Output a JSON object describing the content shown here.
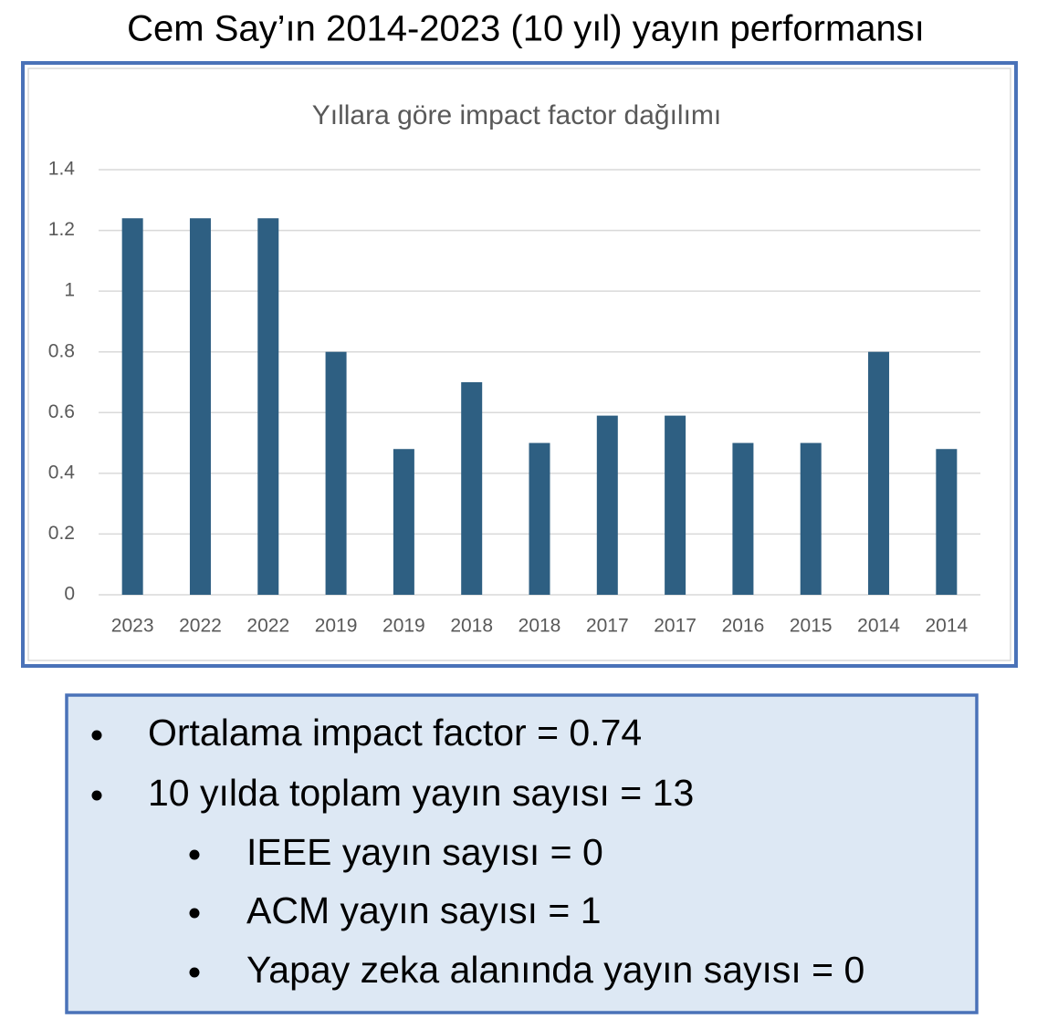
{
  "header": {
    "title": "Cem Say’ın 2014-2023 (10 yıl) yayın performansı"
  },
  "chart_data": {
    "type": "bar",
    "title": "Yıllara göre impact factor dağılımı",
    "categories": [
      "2023",
      "2022",
      "2022",
      "2019",
      "2019",
      "2018",
      "2018",
      "2017",
      "2017",
      "2016",
      "2015",
      "2014",
      "2014"
    ],
    "values": [
      1.24,
      1.24,
      1.24,
      0.8,
      0.48,
      0.7,
      0.5,
      0.59,
      0.59,
      0.5,
      0.5,
      0.8,
      0.48
    ],
    "color": "#2e5f82",
    "ylim": [
      0,
      1.4
    ],
    "yticks": [
      0,
      0.2,
      0.4,
      0.6,
      0.8,
      1,
      1.2,
      1.4
    ],
    "grid": true
  },
  "notes": [
    {
      "level": 1,
      "text": "Ortalama impact factor = 0.74"
    },
    {
      "level": 1,
      "text": "10 yılda toplam yayın sayısı = 13"
    },
    {
      "level": 2,
      "text": "IEEE yayın sayısı = 0"
    },
    {
      "level": 2,
      "text": "ACM yayın sayısı = 1"
    },
    {
      "level": 2,
      "text": "Yapay zeka alanında yayın sayısı = 0"
    }
  ]
}
